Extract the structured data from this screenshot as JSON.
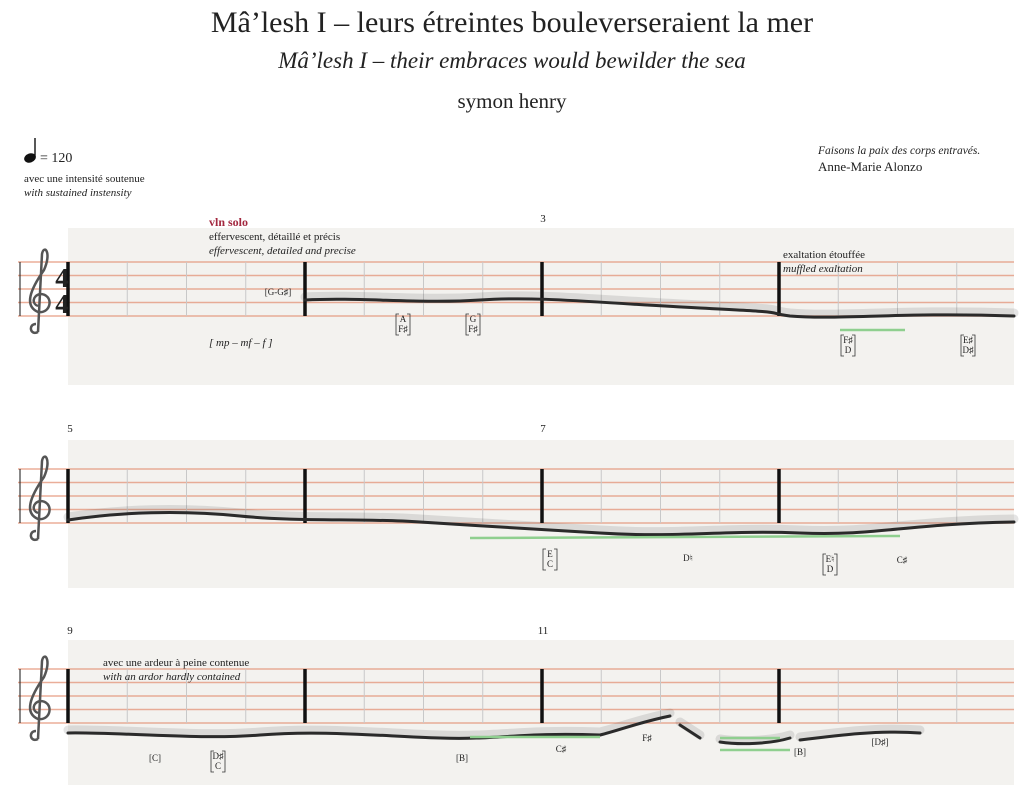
{
  "header": {
    "title": "Mâ’lesh I – leurs étreintes bouleverseraient la mer",
    "subtitle": "Mâ’lesh I – their embraces would bewilder the sea",
    "composer": "symon henry"
  },
  "tempo": {
    "marking": "= 120",
    "fr": "avec une intensité soutenue",
    "en": "with sustained instensity"
  },
  "epigraph": {
    "quote": "Faisons la paix des corps entravés.",
    "author": "Anne-Marie Alonzo"
  },
  "time_signature": {
    "numerator": "4",
    "denominator": "4"
  },
  "systems": [
    {
      "measure_numbers": [
        "3"
      ],
      "annotations": [
        "vln solo",
        "effervescent, détaillé et précis",
        "effervescent, detailed and precise",
        "exaltation étouffée",
        "muffled exaltation"
      ],
      "dynamics": "[ mp – mf – f ]",
      "notes": [
        {
          "text": "[G-G♯]"
        },
        {
          "top": "A",
          "bottom": "F♯"
        },
        {
          "top": "G",
          "bottom": "F♯"
        },
        {
          "top": "F♯",
          "bottom": "D"
        },
        {
          "top": "E♯",
          "bottom": "D♯"
        }
      ]
    },
    {
      "measure_numbers": [
        "5",
        "7"
      ],
      "notes": [
        {
          "top": "E",
          "bottom": "C"
        },
        {
          "text": "D♮"
        },
        {
          "top": "E♮",
          "bottom": "D"
        },
        {
          "text": "C♯"
        }
      ]
    },
    {
      "measure_numbers": [
        "9",
        "11"
      ],
      "annotations": [
        "avec une ardeur à peine contenue",
        "with an ardor hardly contained"
      ],
      "notes": [
        {
          "text": "[C]"
        },
        {
          "top": "D♯",
          "bottom": "C"
        },
        {
          "text": "[B]"
        },
        {
          "text": "C♯"
        },
        {
          "text": "F♯"
        },
        {
          "text": "[B]"
        },
        {
          "text": "[D♯]"
        }
      ]
    }
  ]
}
